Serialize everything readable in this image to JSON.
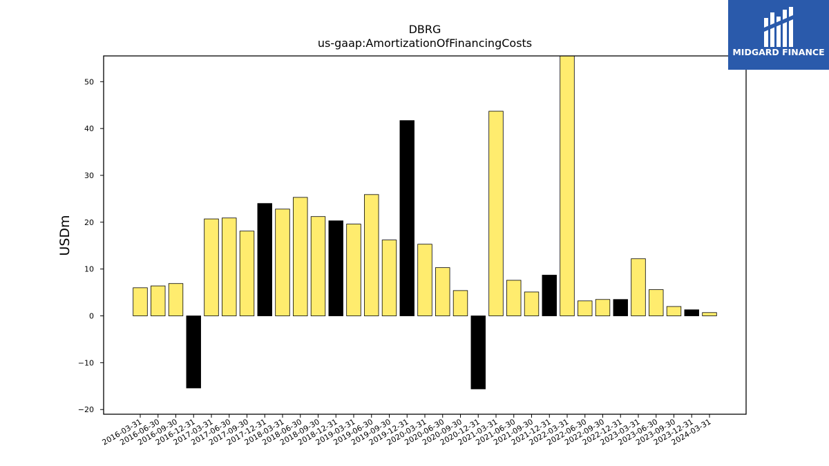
{
  "brand": {
    "name": "MIDGARD FINANCE",
    "background_color": "#2a5aab",
    "icon": "midgard-m-logo"
  },
  "colors": {
    "bar_default": "#ffec6e",
    "bar_q4": "#000000",
    "bar_edge": "#000000"
  },
  "chart_data": {
    "type": "bar",
    "title": "DBRG",
    "subtitle": "us-gaap:AmortizationOfFinancingCosts",
    "xlabel": "",
    "ylabel": "USDm",
    "ylim": [
      -21,
      55.5
    ],
    "yticks": [
      -20,
      -10,
      0,
      10,
      20,
      30,
      40,
      50
    ],
    "grid": false,
    "legend": "none",
    "categories": [
      "2016-03-31",
      "2016-06-30",
      "2016-09-30",
      "2016-12-31",
      "2017-03-31",
      "2017-06-30",
      "2017-09-30",
      "2017-12-31",
      "2018-03-31",
      "2018-06-30",
      "2018-09-30",
      "2018-12-31",
      "2019-03-31",
      "2019-06-30",
      "2019-09-30",
      "2019-12-31",
      "2020-03-31",
      "2020-06-30",
      "2020-09-30",
      "2020-12-31",
      "2021-03-31",
      "2021-06-30",
      "2021-09-30",
      "2021-12-31",
      "2022-03-31",
      "2022-06-30",
      "2022-09-30",
      "2022-12-31",
      "2023-03-31",
      "2023-06-30",
      "2023-09-30",
      "2023-12-31",
      "2024-03-31"
    ],
    "values": [
      6.0,
      6.4,
      6.9,
      -15.4,
      20.7,
      20.9,
      18.1,
      24.0,
      22.8,
      25.3,
      21.2,
      20.3,
      19.6,
      25.9,
      16.2,
      41.7,
      15.3,
      10.3,
      5.4,
      -15.6,
      43.7,
      7.6,
      5.1,
      8.7,
      59.0,
      3.2,
      3.5,
      3.5,
      12.2,
      5.6,
      2.0,
      1.3,
      0.7
    ],
    "highlight": [
      false,
      false,
      false,
      true,
      false,
      false,
      false,
      true,
      false,
      false,
      false,
      true,
      false,
      false,
      false,
      true,
      false,
      false,
      false,
      true,
      false,
      false,
      false,
      true,
      false,
      false,
      false,
      true,
      false,
      false,
      false,
      true,
      false
    ]
  }
}
